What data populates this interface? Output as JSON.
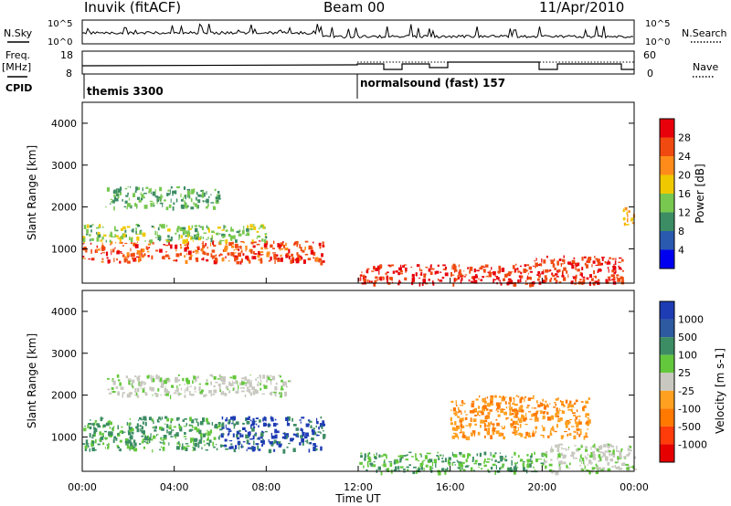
{
  "header": {
    "station": "Inuvik (fitACF)",
    "beam": "Beam 00",
    "date": "11/Apr/2010"
  },
  "left_labels": {
    "nsky": "N.Sky",
    "freq": "Freq.",
    "freq_unit": "[MHz]",
    "cpid": "CPID"
  },
  "right_labels": {
    "nsearch": "N.Search",
    "nave": "Nave"
  },
  "noise_axis": {
    "top": "10^5",
    "bottom": "10^0"
  },
  "freq_axis": {
    "left_ticks": [
      "18",
      "8"
    ],
    "right_ticks": [
      "60",
      "0"
    ]
  },
  "cpid": [
    {
      "label": "themis 3300",
      "start_hour": 0
    },
    {
      "label": "normalsound (fast) 157",
      "start_hour": 12
    }
  ],
  "power_colorbar": {
    "label": "Power [dB]",
    "ticks": [
      "28",
      "24",
      "20",
      "16",
      "12",
      "8",
      "4"
    ],
    "colors": [
      "#e8000a",
      "#f04a10",
      "#ff8c1a",
      "#f0c800",
      "#78c850",
      "#3c8c64",
      "#2a5ab0",
      "#0000f0"
    ]
  },
  "velocity_colorbar": {
    "label": "Velocity [m s-1]",
    "ticks": [
      "1000",
      "500",
      "100",
      "25",
      "-25",
      "-100",
      "-500",
      "-1000"
    ],
    "colors": [
      "#1e3cb4",
      "#2d5aa0",
      "#3c8c64",
      "#64c83c",
      "#c8c8c0",
      "#ffa020",
      "#ff7800",
      "#ff3c0a",
      "#e60000"
    ]
  },
  "chart_data": [
    {
      "type": "heatmap",
      "title": "Power",
      "xlabel": "Time UT",
      "ylabel": "Slant Range [km]",
      "xlim": [
        0,
        24
      ],
      "ylim": [
        180,
        4500
      ],
      "x_ticks": [
        "00:00",
        "04:00",
        "08:00",
        "12:00",
        "16:00",
        "20:00",
        "00:00"
      ],
      "y_ticks": [
        1000,
        2000,
        3000,
        4000
      ],
      "regions": [
        {
          "t": [
            0,
            10.5
          ],
          "r": [
            700,
            1200
          ],
          "value": 24
        },
        {
          "t": [
            0,
            8
          ],
          "r": [
            1200,
            1600
          ],
          "value": 12
        },
        {
          "t": [
            1,
            6
          ],
          "r": [
            2000,
            2500
          ],
          "value": 10
        },
        {
          "t": [
            12,
            19.5
          ],
          "r": [
            180,
            650
          ],
          "value": 26
        },
        {
          "t": [
            19.5,
            23.5
          ],
          "r": [
            180,
            850
          ],
          "value": 26
        },
        {
          "t": [
            23.5,
            24
          ],
          "r": [
            1500,
            2000
          ],
          "value": 18
        }
      ]
    },
    {
      "type": "heatmap",
      "title": "Velocity",
      "xlabel": "Time UT",
      "ylabel": "Slant Range [km]",
      "xlim": [
        0,
        24
      ],
      "ylim": [
        180,
        4500
      ],
      "x_ticks": [
        "00:00",
        "04:00",
        "08:00",
        "12:00",
        "16:00",
        "20:00",
        "00:00"
      ],
      "y_ticks": [
        1000,
        2000,
        3000,
        4000
      ],
      "regions": [
        {
          "t": [
            0,
            6
          ],
          "r": [
            700,
            1500
          ],
          "value": 200
        },
        {
          "t": [
            6,
            10.5
          ],
          "r": [
            700,
            1500
          ],
          "value": 600
        },
        {
          "t": [
            1,
            9
          ],
          "r": [
            2000,
            2500
          ],
          "value": 0
        },
        {
          "t": [
            12,
            20
          ],
          "r": [
            180,
            650
          ],
          "value": 60
        },
        {
          "t": [
            16,
            22
          ],
          "r": [
            1000,
            2000
          ],
          "value": -200
        },
        {
          "t": [
            20,
            24
          ],
          "r": [
            180,
            850
          ],
          "value": 0
        }
      ]
    }
  ]
}
